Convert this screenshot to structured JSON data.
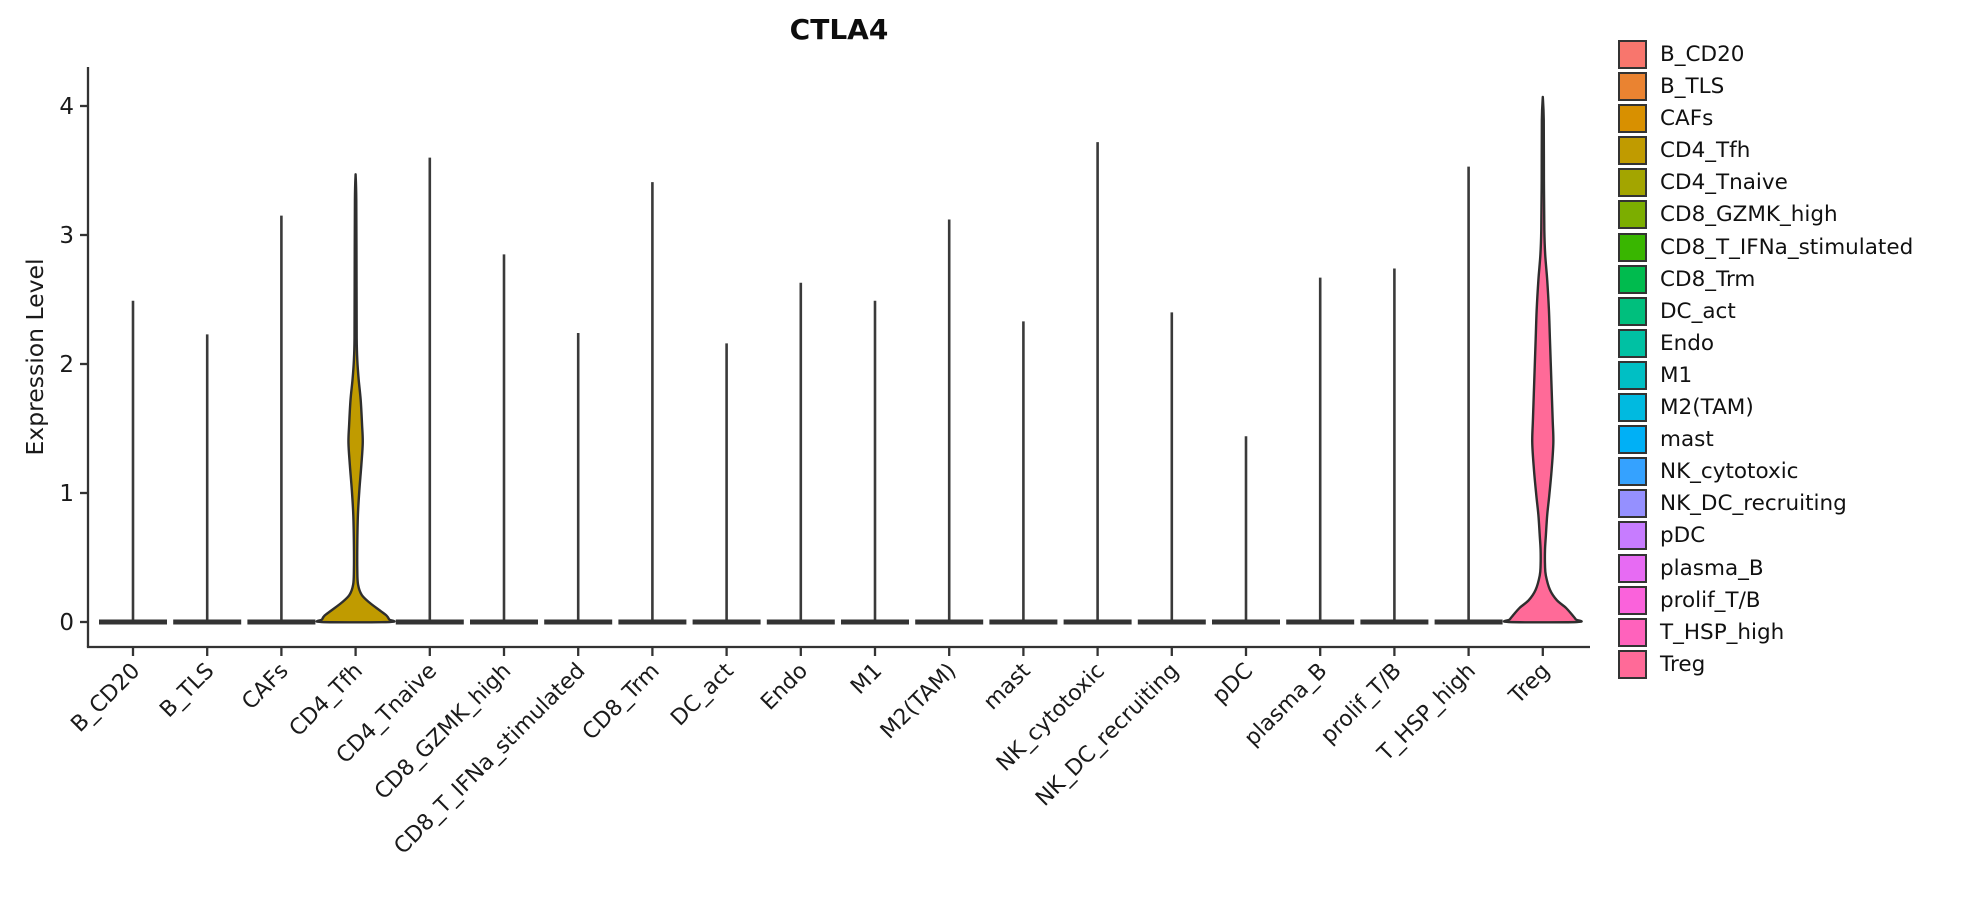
{
  "figure": {
    "title": "CTLA4",
    "ylabel": "Expression Level"
  },
  "chart_data": {
    "type": "violin",
    "title": "CTLA4",
    "xlabel": "",
    "ylabel": "Expression Level",
    "ylim": [
      0,
      4.3
    ],
    "yticks": [
      0,
      1,
      2,
      3,
      4
    ],
    "grid": false,
    "legend_position": "right",
    "categories": [
      "B_CD20",
      "B_TLS",
      "CAFs",
      "CD4_Tfh",
      "CD4_Tnaive",
      "CD8_GZMK_high",
      "CD8_T_IFNa_stimulated",
      "CD8_Trm",
      "DC_act",
      "Endo",
      "M1",
      "M2(TAM)",
      "mast",
      "NK_cytotoxic",
      "NK_DC_recruiting",
      "pDC",
      "plasma_B",
      "prolif_T/B",
      "T_HSP_high",
      "Treg"
    ],
    "series": [
      {
        "name": "B_CD20",
        "color": "#F8766D",
        "max_expression": 2.49,
        "shape": "spike-with-flat-base",
        "profile": null
      },
      {
        "name": "B_TLS",
        "color": "#EA8331",
        "max_expression": 2.23,
        "shape": "spike-with-flat-base",
        "profile": null
      },
      {
        "name": "CAFs",
        "color": "#D89000",
        "max_expression": 3.15,
        "shape": "spike-with-flat-base",
        "profile": null
      },
      {
        "name": "CD4_Tfh",
        "color": "#C09B00",
        "max_expression": 3.47,
        "shape": "filled-violin",
        "profile": [
          [
            3.47,
            0
          ],
          [
            3.27,
            0.02
          ],
          [
            2.6,
            0.028
          ],
          [
            2.2,
            0.032
          ],
          [
            2.03,
            0.05
          ],
          [
            1.88,
            0.09
          ],
          [
            1.72,
            0.15
          ],
          [
            1.53,
            0.19
          ],
          [
            1.39,
            0.21
          ],
          [
            1.22,
            0.17
          ],
          [
            1.02,
            0.11
          ],
          [
            0.83,
            0.068
          ],
          [
            0.6,
            0.05
          ],
          [
            0.4,
            0.05
          ],
          [
            0.29,
            0.072
          ],
          [
            0.21,
            0.18
          ],
          [
            0.15,
            0.41
          ],
          [
            0.09,
            0.71
          ],
          [
            0.05,
            0.91
          ],
          [
            0.02,
            0.985
          ],
          [
            0,
            1
          ]
        ]
      },
      {
        "name": "CD4_Tnaive",
        "color": "#A3A500",
        "max_expression": 3.6,
        "shape": "spike-with-flat-base",
        "profile": null
      },
      {
        "name": "CD8_GZMK_high",
        "color": "#7CAE00",
        "max_expression": 2.85,
        "shape": "spike-with-flat-base",
        "profile": null
      },
      {
        "name": "CD8_T_IFNa_stimulated",
        "color": "#39B600",
        "max_expression": 2.24,
        "shape": "spike-with-flat-base",
        "profile": null
      },
      {
        "name": "CD8_Trm",
        "color": "#00BB4E",
        "max_expression": 3.41,
        "shape": "spike-with-flat-base",
        "profile": null
      },
      {
        "name": "DC_act",
        "color": "#00BF7D",
        "max_expression": 2.16,
        "shape": "spike-with-flat-base",
        "profile": null
      },
      {
        "name": "Endo",
        "color": "#00C1A3",
        "max_expression": 2.63,
        "shape": "spike-with-flat-base",
        "profile": null
      },
      {
        "name": "M1",
        "color": "#00BFC4",
        "max_expression": 2.49,
        "shape": "spike-with-flat-base",
        "profile": null
      },
      {
        "name": "M2(TAM)",
        "color": "#00BAE0",
        "max_expression": 3.12,
        "shape": "spike-with-flat-base",
        "profile": null
      },
      {
        "name": "mast",
        "color": "#00B0F6",
        "max_expression": 2.33,
        "shape": "spike-with-flat-base",
        "profile": null
      },
      {
        "name": "NK_cytotoxic",
        "color": "#35A2FF",
        "max_expression": 3.72,
        "shape": "spike-with-flat-base",
        "profile": null
      },
      {
        "name": "NK_DC_recruiting",
        "color": "#9590FF",
        "max_expression": 2.4,
        "shape": "spike-with-flat-base",
        "profile": null
      },
      {
        "name": "pDC",
        "color": "#C77CFF",
        "max_expression": 1.44,
        "shape": "spike-with-flat-base",
        "profile": null
      },
      {
        "name": "plasma_B",
        "color": "#E76BF3",
        "max_expression": 2.67,
        "shape": "spike-with-flat-base",
        "profile": null
      },
      {
        "name": "prolif_T/B",
        "color": "#FA62DB",
        "max_expression": 2.74,
        "shape": "spike-with-flat-base",
        "profile": null
      },
      {
        "name": "T_HSP_high",
        "color": "#FF62BC",
        "max_expression": 3.53,
        "shape": "spike-with-flat-base",
        "profile": null
      },
      {
        "name": "Treg",
        "color": "#FF6A98",
        "max_expression": 4.07,
        "shape": "filled-violin",
        "profile": [
          [
            4.07,
            0
          ],
          [
            3.89,
            0.028
          ],
          [
            3.43,
            0.033
          ],
          [
            3.04,
            0.045
          ],
          [
            2.85,
            0.07
          ],
          [
            2.65,
            0.13
          ],
          [
            2.42,
            0.18
          ],
          [
            2.19,
            0.21
          ],
          [
            1.88,
            0.25
          ],
          [
            1.57,
            0.29
          ],
          [
            1.39,
            0.31
          ],
          [
            1.18,
            0.26
          ],
          [
            0.98,
            0.19
          ],
          [
            0.83,
            0.13
          ],
          [
            0.67,
            0.09
          ],
          [
            0.56,
            0.065
          ],
          [
            0.44,
            0.065
          ],
          [
            0.36,
            0.09
          ],
          [
            0.25,
            0.21
          ],
          [
            0.17,
            0.41
          ],
          [
            0.11,
            0.68
          ],
          [
            0.05,
            0.88
          ],
          [
            0.02,
            0.97
          ],
          [
            0,
            1
          ]
        ]
      }
    ]
  }
}
